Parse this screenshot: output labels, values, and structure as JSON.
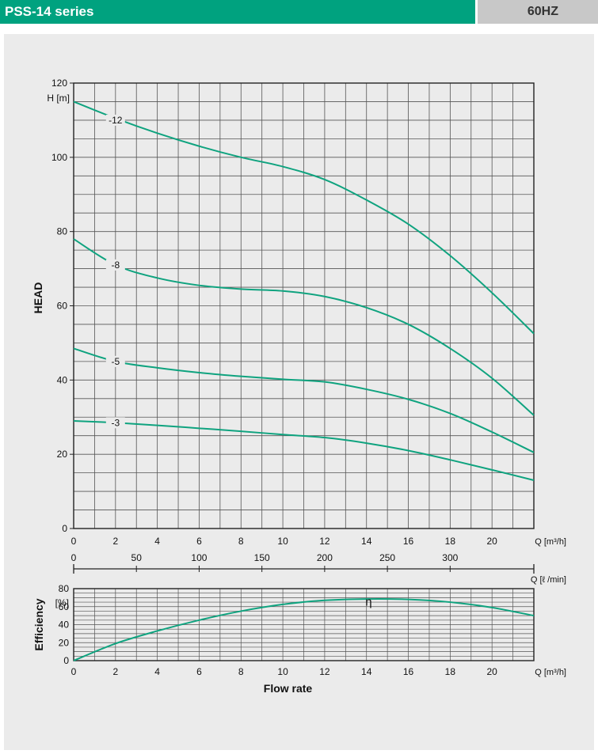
{
  "header": {
    "series_title": "PSS-14 series",
    "frequency": "60HZ"
  },
  "colors": {
    "curve": "#0fa37f",
    "grid": "#555555",
    "panel": "#ebebeb",
    "header_green": "#00a27f"
  },
  "chart_data": [
    {
      "type": "line",
      "ylabel": "HEAD",
      "yunit": "H [m]",
      "xunit": "Q [m³/h]",
      "xlim": [
        0,
        22
      ],
      "ylim": [
        0,
        120
      ],
      "xticks": [
        0,
        2,
        4,
        6,
        8,
        10,
        12,
        14,
        16,
        18,
        20
      ],
      "yticks": [
        0,
        20,
        40,
        60,
        80,
        100,
        120
      ],
      "grid": true,
      "series": [
        {
          "name": "-12",
          "label_at": [
            2,
            110
          ],
          "x": [
            0,
            2,
            4,
            6,
            8,
            10,
            12,
            14,
            16,
            18,
            20,
            22
          ],
          "y": [
            115,
            110.5,
            106.5,
            103,
            100,
            97.5,
            94,
            88.5,
            82,
            73.5,
            63.5,
            52.5
          ]
        },
        {
          "name": "-8",
          "label_at": [
            2,
            71
          ],
          "x": [
            0,
            2,
            4,
            6,
            8,
            10,
            12,
            14,
            16,
            18,
            20,
            22
          ],
          "y": [
            78,
            71,
            67.5,
            65.5,
            64.5,
            64,
            62.5,
            59.5,
            55,
            48.5,
            40.5,
            30.5
          ]
        },
        {
          "name": "-5",
          "label_at": [
            2,
            45
          ],
          "x": [
            0,
            2,
            4,
            6,
            8,
            10,
            12,
            14,
            16,
            18,
            20,
            22
          ],
          "y": [
            48.5,
            45,
            43.3,
            42,
            41,
            40.2,
            39.5,
            37.5,
            34.8,
            31,
            26,
            20.5
          ]
        },
        {
          "name": "-3",
          "label_at": [
            2,
            28.5
          ],
          "x": [
            0,
            2,
            4,
            6,
            8,
            10,
            12,
            14,
            16,
            18,
            20,
            22
          ],
          "y": [
            29,
            28.5,
            27.8,
            27,
            26.2,
            25.3,
            24.5,
            23,
            21,
            18.5,
            15.8,
            13
          ]
        }
      ]
    },
    {
      "type": "axis",
      "xunit": "Q [ℓ /min]",
      "xlim": [
        0,
        366.7
      ],
      "xticks": [
        0,
        50,
        100,
        150,
        200,
        250,
        300
      ]
    },
    {
      "type": "line",
      "ylabel": "Efficiency",
      "yunit": "[%]",
      "xunit": "Q [m³/h]",
      "xlabel": "Flow rate",
      "xlim": [
        0,
        22
      ],
      "ylim": [
        0,
        80
      ],
      "xticks": [
        0,
        2,
        4,
        6,
        8,
        10,
        12,
        14,
        16,
        18,
        20
      ],
      "yticks": [
        0,
        20,
        40,
        60,
        80
      ],
      "grid": true,
      "series": [
        {
          "name": "η",
          "label_at": [
            14.1,
            61
          ],
          "x": [
            0,
            2,
            4,
            6,
            8,
            10,
            12,
            14,
            16,
            18,
            20,
            22
          ],
          "y": [
            0,
            19,
            33,
            45,
            55,
            62.5,
            67,
            68.5,
            68,
            65,
            59,
            50
          ]
        }
      ]
    }
  ]
}
